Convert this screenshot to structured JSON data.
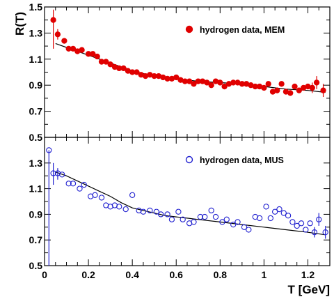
{
  "chart_data": [
    {
      "type": "scatter",
      "panel": "top",
      "ylabel": "R(T)",
      "xlim": [
        0,
        1.3
      ],
      "ylim": [
        0.5,
        1.5
      ],
      "yticks": [
        "0.5",
        "0.7",
        "0.9",
        "1.1",
        "1.3",
        "1.5"
      ],
      "legend": {
        "label": "hydrogen data, MEM",
        "position": "top-right",
        "marker": "filled-circle",
        "color": "#e00000"
      },
      "series": [
        {
          "name": "hydrogen data, MEM",
          "color": "#e00000",
          "points": [
            {
              "x": 0.04,
              "y": 1.4,
              "lo": 1.18,
              "hi": 1.48
            },
            {
              "x": 0.06,
              "y": 1.29,
              "lo": 1.25,
              "hi": 1.33
            },
            {
              "x": 0.09,
              "y": 1.24,
              "lo": 1.22,
              "hi": 1.26
            },
            {
              "x": 0.11,
              "y": 1.18
            },
            {
              "x": 0.13,
              "y": 1.18
            },
            {
              "x": 0.15,
              "y": 1.16
            },
            {
              "x": 0.17,
              "y": 1.17
            },
            {
              "x": 0.2,
              "y": 1.14
            },
            {
              "x": 0.22,
              "y": 1.14
            },
            {
              "x": 0.24,
              "y": 1.12
            },
            {
              "x": 0.26,
              "y": 1.08
            },
            {
              "x": 0.28,
              "y": 1.08
            },
            {
              "x": 0.3,
              "y": 1.06
            },
            {
              "x": 0.32,
              "y": 1.04
            },
            {
              "x": 0.34,
              "y": 1.03
            },
            {
              "x": 0.36,
              "y": 1.03
            },
            {
              "x": 0.38,
              "y": 1.01
            },
            {
              "x": 0.4,
              "y": 1.0
            },
            {
              "x": 0.42,
              "y": 1.0
            },
            {
              "x": 0.44,
              "y": 0.98
            },
            {
              "x": 0.46,
              "y": 0.97
            },
            {
              "x": 0.48,
              "y": 0.98
            },
            {
              "x": 0.5,
              "y": 0.97
            },
            {
              "x": 0.52,
              "y": 0.97
            },
            {
              "x": 0.54,
              "y": 0.96
            },
            {
              "x": 0.56,
              "y": 0.95
            },
            {
              "x": 0.58,
              "y": 0.95
            },
            {
              "x": 0.6,
              "y": 0.96
            },
            {
              "x": 0.62,
              "y": 0.94
            },
            {
              "x": 0.64,
              "y": 0.93
            },
            {
              "x": 0.66,
              "y": 0.93
            },
            {
              "x": 0.68,
              "y": 0.91
            },
            {
              "x": 0.7,
              "y": 0.93
            },
            {
              "x": 0.72,
              "y": 0.93
            },
            {
              "x": 0.74,
              "y": 0.92
            },
            {
              "x": 0.76,
              "y": 0.9
            },
            {
              "x": 0.78,
              "y": 0.93
            },
            {
              "x": 0.8,
              "y": 0.92
            },
            {
              "x": 0.82,
              "y": 0.89
            },
            {
              "x": 0.84,
              "y": 0.91
            },
            {
              "x": 0.86,
              "y": 0.92
            },
            {
              "x": 0.88,
              "y": 0.92
            },
            {
              "x": 0.9,
              "y": 0.91
            },
            {
              "x": 0.92,
              "y": 0.91
            },
            {
              "x": 0.94,
              "y": 0.9
            },
            {
              "x": 0.96,
              "y": 0.89
            },
            {
              "x": 0.98,
              "y": 0.89
            },
            {
              "x": 1.0,
              "y": 0.88
            },
            {
              "x": 1.02,
              "y": 0.91
            },
            {
              "x": 1.04,
              "y": 0.85
            },
            {
              "x": 1.06,
              "y": 0.86
            },
            {
              "x": 1.08,
              "y": 0.91
            },
            {
              "x": 1.1,
              "y": 0.85
            },
            {
              "x": 1.12,
              "y": 0.84
            },
            {
              "x": 1.14,
              "y": 0.89
            },
            {
              "x": 1.16,
              "y": 0.86
            },
            {
              "x": 1.18,
              "y": 0.88
            },
            {
              "x": 1.2,
              "y": 0.89
            },
            {
              "x": 1.22,
              "y": 0.88,
              "lo": 0.84,
              "hi": 0.92
            },
            {
              "x": 1.24,
              "y": 0.92,
              "lo": 0.87,
              "hi": 0.97
            },
            {
              "x": 1.27,
              "y": 0.86,
              "lo": 0.81,
              "hi": 0.91
            }
          ]
        }
      ],
      "fit_curve": [
        [
          0.05,
          1.22
        ],
        [
          0.1,
          1.19
        ],
        [
          0.15,
          1.16
        ],
        [
          0.2,
          1.13
        ],
        [
          0.25,
          1.1
        ],
        [
          0.3,
          1.07
        ],
        [
          0.35,
          1.04
        ],
        [
          0.4,
          1.01
        ],
        [
          0.45,
          0.99
        ],
        [
          0.5,
          0.97
        ],
        [
          0.55,
          0.96
        ],
        [
          0.6,
          0.95
        ],
        [
          0.65,
          0.94
        ],
        [
          0.7,
          0.93
        ],
        [
          0.8,
          0.92
        ],
        [
          0.9,
          0.91
        ],
        [
          1.0,
          0.89
        ],
        [
          1.1,
          0.87
        ],
        [
          1.2,
          0.86
        ],
        [
          1.28,
          0.845
        ]
      ]
    },
    {
      "type": "scatter",
      "panel": "bottom",
      "xlabel": "T [GeV]",
      "xlim": [
        0,
        1.3
      ],
      "ylim": [
        0.5,
        1.5
      ],
      "xticks": [
        "0",
        "0.2",
        "0.4",
        "0.6",
        "0.8",
        "1",
        "1.2"
      ],
      "yticks": [
        "0.5",
        "0.7",
        "0.9",
        "1.1",
        "1.3"
      ],
      "legend": {
        "label": "hydrogen data, MUS",
        "position": "top-right",
        "marker": "open-circle",
        "color": "#2020d0"
      },
      "series": [
        {
          "name": "hydrogen data, MUS",
          "color": "#2020d0",
          "points": [
            {
              "x": 0.02,
              "y": 1.4,
              "lo": 0.5,
              "hi": 1.4
            },
            {
              "x": 0.04,
              "y": 1.22,
              "lo": 1.13,
              "hi": 1.3
            },
            {
              "x": 0.06,
              "y": 1.22,
              "lo": 1.17,
              "hi": 1.26
            },
            {
              "x": 0.08,
              "y": 1.21
            },
            {
              "x": 0.11,
              "y": 1.14
            },
            {
              "x": 0.13,
              "y": 1.14
            },
            {
              "x": 0.16,
              "y": 1.1
            },
            {
              "x": 0.18,
              "y": 1.13
            },
            {
              "x": 0.21,
              "y": 1.04
            },
            {
              "x": 0.23,
              "y": 1.05
            },
            {
              "x": 0.26,
              "y": 1.03
            },
            {
              "x": 0.28,
              "y": 0.97
            },
            {
              "x": 0.3,
              "y": 0.96
            },
            {
              "x": 0.32,
              "y": 0.97
            },
            {
              "x": 0.34,
              "y": 0.96
            },
            {
              "x": 0.37,
              "y": 0.94
            },
            {
              "x": 0.4,
              "y": 1.05
            },
            {
              "x": 0.43,
              "y": 0.93
            },
            {
              "x": 0.45,
              "y": 0.92
            },
            {
              "x": 0.48,
              "y": 0.93
            },
            {
              "x": 0.51,
              "y": 0.92
            },
            {
              "x": 0.53,
              "y": 0.9
            },
            {
              "x": 0.56,
              "y": 0.9
            },
            {
              "x": 0.58,
              "y": 0.86
            },
            {
              "x": 0.61,
              "y": 0.92
            },
            {
              "x": 0.63,
              "y": 0.86
            },
            {
              "x": 0.66,
              "y": 0.83
            },
            {
              "x": 0.68,
              "y": 0.84
            },
            {
              "x": 0.71,
              "y": 0.88
            },
            {
              "x": 0.73,
              "y": 0.88
            },
            {
              "x": 0.76,
              "y": 0.93
            },
            {
              "x": 0.78,
              "y": 0.88
            },
            {
              "x": 0.81,
              "y": 0.84
            },
            {
              "x": 0.83,
              "y": 0.86
            },
            {
              "x": 0.86,
              "y": 0.82
            },
            {
              "x": 0.88,
              "y": 0.84
            },
            {
              "x": 0.91,
              "y": 0.8
            },
            {
              "x": 0.93,
              "y": 0.78
            },
            {
              "x": 0.96,
              "y": 0.88
            },
            {
              "x": 0.98,
              "y": 0.87
            },
            {
              "x": 1.01,
              "y": 0.96
            },
            {
              "x": 1.03,
              "y": 0.87
            },
            {
              "x": 1.05,
              "y": 0.92
            },
            {
              "x": 1.07,
              "y": 0.94
            },
            {
              "x": 1.09,
              "y": 0.91
            },
            {
              "x": 1.11,
              "y": 0.89
            },
            {
              "x": 1.13,
              "y": 0.84
            },
            {
              "x": 1.15,
              "y": 0.81
            },
            {
              "x": 1.17,
              "y": 0.83
            },
            {
              "x": 1.19,
              "y": 0.78
            },
            {
              "x": 1.21,
              "y": 0.83
            },
            {
              "x": 1.23,
              "y": 0.76,
              "lo": 0.72,
              "hi": 0.8
            },
            {
              "x": 1.25,
              "y": 0.86,
              "lo": 0.81,
              "hi": 0.91
            },
            {
              "x": 1.28,
              "y": 0.76,
              "lo": 0.71,
              "hi": 0.81
            }
          ]
        }
      ],
      "fit_curve": [
        [
          0.05,
          1.23
        ],
        [
          0.1,
          1.2
        ],
        [
          0.15,
          1.16
        ],
        [
          0.2,
          1.12
        ],
        [
          0.25,
          1.08
        ],
        [
          0.3,
          1.04
        ],
        [
          0.35,
          0.99
        ],
        [
          0.4,
          0.95
        ],
        [
          0.45,
          0.93
        ],
        [
          0.5,
          0.91
        ],
        [
          0.55,
          0.89
        ],
        [
          0.6,
          0.88
        ],
        [
          0.65,
          0.87
        ],
        [
          0.7,
          0.86
        ],
        [
          0.8,
          0.84
        ],
        [
          0.9,
          0.82
        ],
        [
          1.0,
          0.8
        ],
        [
          1.1,
          0.78
        ],
        [
          1.2,
          0.76
        ],
        [
          1.28,
          0.74
        ]
      ]
    }
  ]
}
